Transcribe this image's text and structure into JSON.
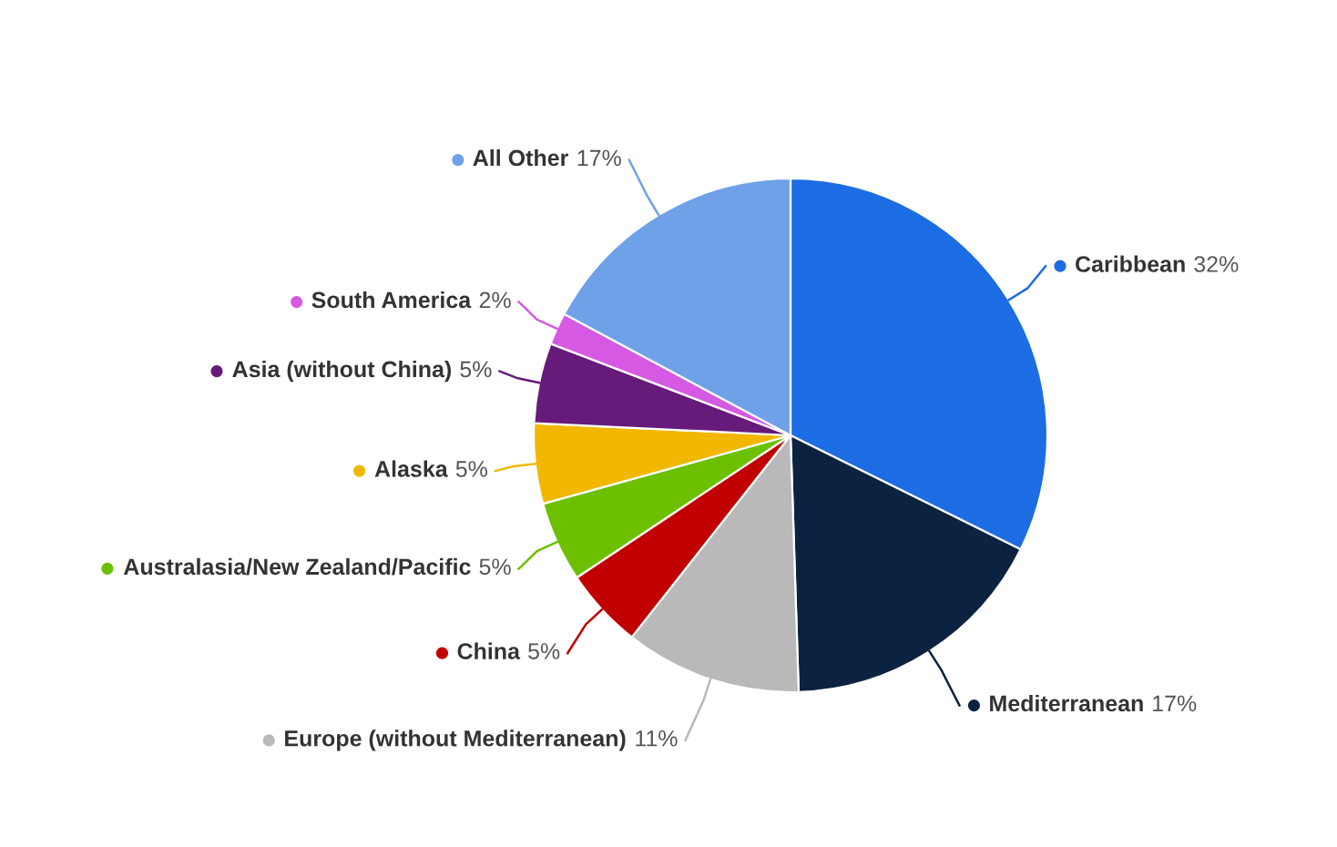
{
  "chart_data": {
    "type": "pie",
    "categories": [
      "Caribbean",
      "Mediterranean",
      "Europe (without Mediterranean)",
      "China",
      "Australasia/New Zealand/Pacific",
      "Alaska",
      "Asia (without China)",
      "South America",
      "All Other"
    ],
    "values": [
      32,
      17,
      11,
      5,
      5,
      5,
      5,
      2,
      17
    ],
    "colors": [
      "#1c6ce3",
      "#0b2341",
      "#b9b9b9",
      "#c10000",
      "#6cc000",
      "#f2b700",
      "#661a7a",
      "#d659e3",
      "#6ea1e8"
    ],
    "value_labels": [
      "32%",
      "17%",
      "11%",
      "5%",
      "5%",
      "5%",
      "5%",
      "2%",
      "17%"
    ],
    "legend": "bottom left"
  }
}
